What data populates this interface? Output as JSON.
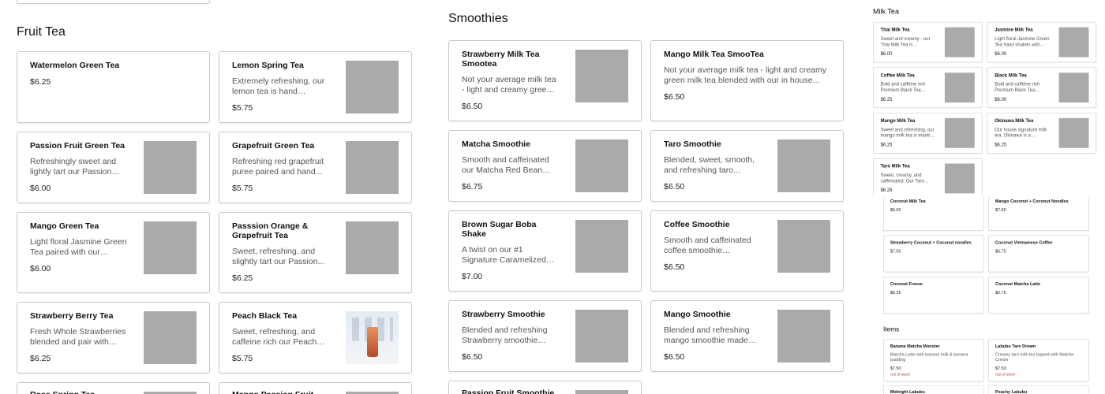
{
  "panels": [
    {
      "sections": [
        {
          "title": "",
          "items": [
            {
              "name": "",
              "partial": true
            }
          ]
        },
        {
          "title": "Fruit Tea",
          "items": [
            {
              "name": "Watermelon Green Tea",
              "price": "$6.25"
            },
            {
              "name": "Lemon Spring Tea",
              "desc": "Extremely refreshing, our lemon tea is hand shaken...",
              "price": "$5.75",
              "image": "placeholder"
            },
            {
              "name": "Passion Fruit Green Tea",
              "desc": "Refreshingly sweet and lightly tart our Passion Fruit...",
              "price": "$6.00",
              "image": "placeholder"
            },
            {
              "name": "Grapefruit Green Tea",
              "desc": "Refreshing red grapefruit puree paired and hand...",
              "price": "$5.75",
              "image": "placeholder"
            },
            {
              "name": "Mango Green Tea",
              "desc": "Light floral Jasmine Green Tea paired with our unique...",
              "price": "$6.00",
              "image": "placeholder"
            },
            {
              "name": "Passsion Orange & Grapefruit Tea",
              "desc": "Sweet, refreshing, and slightly tart our Passion...",
              "price": "$6.25",
              "image": "placeholder"
            },
            {
              "name": "Strawberry Berry Tea",
              "desc": "Fresh Whole Strawberries blended and pair with our...",
              "price": "$6.25",
              "image": "placeholder"
            },
            {
              "name": "Peach Black Tea",
              "desc": "Sweet, refreshing, and caffeine rich our Peach blac...",
              "price": "$5.75",
              "image": "photo"
            },
            {
              "name": "Rose Spring Tea",
              "image": "placeholder"
            },
            {
              "name": "Mango Passion Fruit Green",
              "image": "placeholder"
            }
          ]
        }
      ]
    },
    {
      "sections": [
        {
          "title": "Smoothies",
          "items": [
            {
              "name": "Strawberry Milk Tea Smootea",
              "desc": "Not your average milk tea - light and creamy green mil...",
              "price": "$6.50",
              "image": "placeholder"
            },
            {
              "name": "Mango Milk Tea SmooTea",
              "desc": "Not your average milk tea - light and creamy green milk tea blended with our in house...",
              "price": "$6.50"
            },
            {
              "name": "Matcha Smoothie",
              "desc": "Smooth and caffeinated our Matcha Red Bean Smoothi...",
              "price": "$6.75",
              "image": "placeholder"
            },
            {
              "name": "Taro Smoothie",
              "desc": "Blended, sweet, smooth, and refreshing taro...",
              "price": "$6.50",
              "image": "placeholder"
            },
            {
              "name": "Brown Sugar Boba Shake",
              "desc": "A twist on our #1 Signature Caramelized Brown Sugar...",
              "price": "$7.00",
              "image": "placeholder"
            },
            {
              "name": "Coffee Smoothie",
              "desc": "Smooth and caffeinated coffee smoothie sweetened...",
              "price": "$6.50",
              "image": "placeholder"
            },
            {
              "name": "Strawberry Smoothie",
              "desc": "Blended and refreshing Strawberry smoothie made...",
              "price": "$6.50",
              "image": "placeholder"
            },
            {
              "name": "Mango Smoothie",
              "desc": "Blended and refreshing mango smoothie made wit...",
              "price": "$6.50",
              "image": "placeholder"
            },
            {
              "name": "Passion Fruit Smoothie",
              "image": "placeholder"
            }
          ]
        }
      ]
    },
    {
      "sections": [
        {
          "title": "Milk Tea",
          "items": [
            {
              "name": "Thai Milk Tea",
              "desc": "Sweet and creamy - our Thai Milk Tea is authentically...",
              "price": "$6.00",
              "image": "placeholder"
            },
            {
              "name": "Jasmine Milk Tea",
              "desc": "Light floral Jasmine Green Tea hand shaken with non-...",
              "price": "$6.00",
              "image": "placeholder"
            },
            {
              "name": "Coffee Milk Tea",
              "desc": "Bold and caffeine rich Premium Black Tea hand...",
              "price": "$6.25",
              "image": "placeholder"
            },
            {
              "name": "Black Milk Tea",
              "desc": "Bold and caffeine rich Premium Black Tea hand...",
              "price": "$6.00",
              "image": "placeholder"
            },
            {
              "name": "Mango Milk Tea",
              "desc": "Sweet and refreshing, our mango milk tea is made wi...",
              "price": "$6.25",
              "image": "placeholder"
            },
            {
              "name": "Okinawa Milk Tea",
              "desc": "Our house signature milk tea. Okinawa is a Roasted...",
              "price": "$6.25",
              "image": "placeholder"
            },
            {
              "name": "Taro Milk Tea",
              "desc": "Sweet, creamy, and caffeinated. Our Taro Milk...",
              "price": "$6.25",
              "image": "placeholder"
            }
          ]
        }
      ]
    },
    {
      "sections": [
        {
          "title": "",
          "items": [
            {
              "name": "Coconut Milk Tea",
              "price": "$6.00"
            },
            {
              "name": "Mango Coconut + Coconut Noodles",
              "price": "$7.50"
            },
            {
              "name": "Strawberry Coconut + Coconut noodles",
              "price": "$7.50"
            },
            {
              "name": "Coconut Vietnamese Coffee",
              "price": "$6.75"
            },
            {
              "name": "Coconut Freeze",
              "price": "$6.25"
            },
            {
              "name": "Coconut Matcha Latte",
              "price": "$6.75"
            }
          ]
        },
        {
          "title": "Items",
          "items": [
            {
              "name": "Banana Matcha Monster",
              "desc": "Matcha Latte with banana milk & banana pudding",
              "price": "$7.50",
              "stock": "Out of stock"
            },
            {
              "name": "Labubu Taro Dream",
              "desc": "Creamy taro milk tea topped with Matcha Cream",
              "price": "$7.50",
              "stock": "Out of stock"
            },
            {
              "name": "Midnight Labubu"
            },
            {
              "name": "Peachy Labubu"
            }
          ]
        }
      ]
    }
  ],
  "colors": {
    "out_of_stock": "#c0272d",
    "placeholder": "#aaaaaa",
    "border": "#c9c9c9"
  }
}
